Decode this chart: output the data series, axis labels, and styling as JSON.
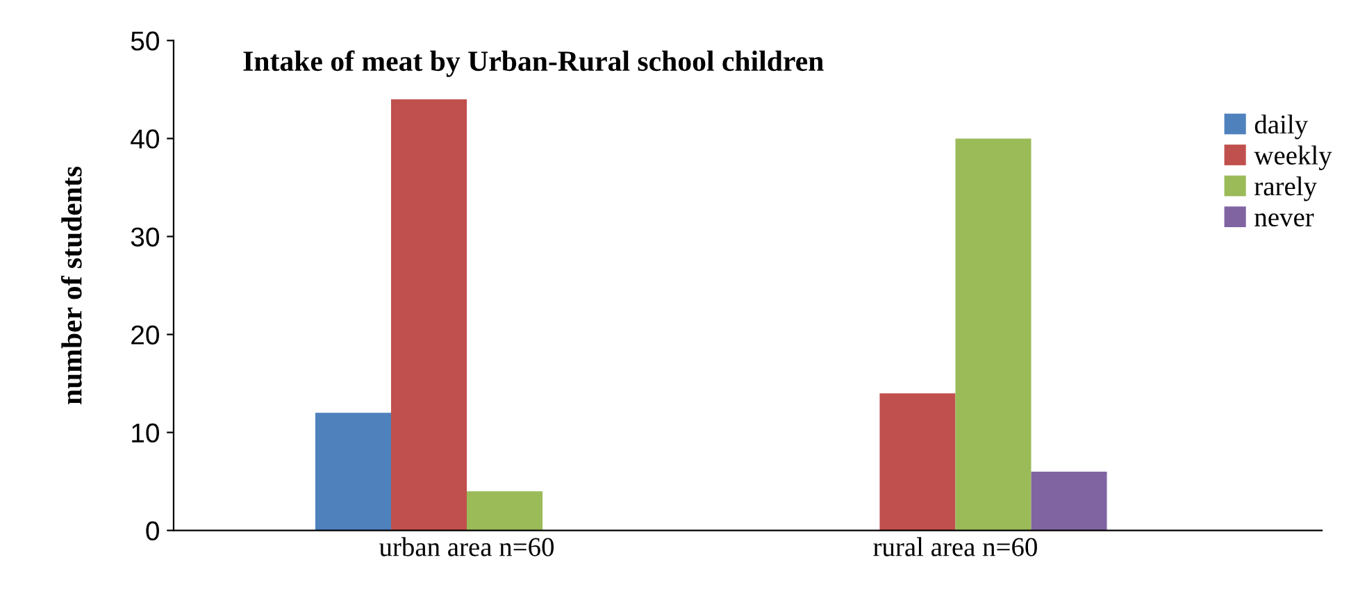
{
  "chart_data": {
    "type": "bar",
    "title": "Intake of meat by Urban-Rural school children",
    "ylabel": "number of students",
    "categories": [
      "urban area n=60",
      "rural area n=60"
    ],
    "series": [
      {
        "name": "daily",
        "color": "#4f81bd",
        "values": [
          12,
          0
        ]
      },
      {
        "name": "weekly",
        "color": "#c0504d",
        "values": [
          44,
          14
        ]
      },
      {
        "name": "rarely",
        "color": "#9bbb59",
        "values": [
          4,
          40
        ]
      },
      {
        "name": "never",
        "color": "#8064a2",
        "values": [
          0,
          6
        ]
      }
    ],
    "ylim": [
      0,
      50
    ],
    "yticks": [
      0,
      10,
      20,
      30,
      40,
      50
    ],
    "grid": false,
    "legend": "right"
  }
}
